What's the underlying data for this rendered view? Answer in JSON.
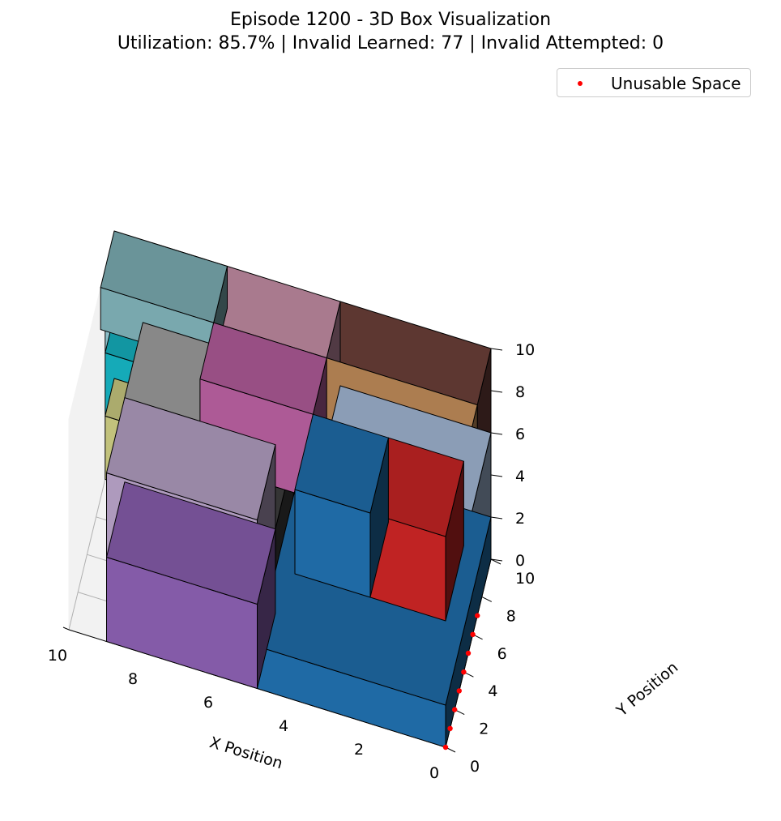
{
  "header": {
    "title": "Episode 1200 - 3D Box Visualization",
    "subtitle": "Utilization: 85.7% | Invalid Learned: 77 | Invalid Attempted: 0"
  },
  "legend": {
    "label": "Unusable Space",
    "marker_color": "#ff0000"
  },
  "chart_data": {
    "type": "3d-bar",
    "xlabel": "X Position",
    "ylabel": "Y Position",
    "zlabel": "",
    "xlim": [
      0,
      10
    ],
    "ylim": [
      0,
      10
    ],
    "zlim": [
      0,
      10
    ],
    "xticks": [
      "0",
      "2",
      "4",
      "6",
      "8",
      "10"
    ],
    "yticks": [
      "0",
      "2",
      "4",
      "6",
      "8",
      "10"
    ],
    "zticks": [
      "0",
      "2",
      "4",
      "6",
      "8",
      "10"
    ],
    "legend_position": "top-right",
    "boxes": [
      {
        "x": 0,
        "y": 0,
        "z": 0,
        "dx": 5,
        "dy": 10,
        "dz": 2,
        "color": "#1f6aa5"
      },
      {
        "x": 0,
        "y": 0,
        "z": 2,
        "dx": 4,
        "dy": 10,
        "dz": 4,
        "color": "#9eb2cf"
      },
      {
        "x": 0,
        "y": 0,
        "z": 6,
        "dx": 2,
        "dy": 4,
        "dz": 4,
        "color": "#c02323"
      },
      {
        "x": 2,
        "y": 0,
        "z": 6,
        "dx": 2,
        "dy": 4,
        "dz": 4,
        "color": "#1f6aa5"
      },
      {
        "x": 0,
        "y": 4,
        "z": 6,
        "dx": 4,
        "dy": 3,
        "dz": 4,
        "color": "#c38e5b"
      },
      {
        "x": 0,
        "y": 7,
        "z": 6,
        "dx": 4,
        "dy": 3,
        "dz": 4,
        "color": "#6a3f38"
      },
      {
        "x": 4,
        "y": 7,
        "z": 6,
        "dx": 3,
        "dy": 3,
        "dz": 4,
        "color": "#c08ba1"
      },
      {
        "x": 4,
        "y": 4,
        "z": 6,
        "dx": 3,
        "dy": 3,
        "dz": 4,
        "color": "#ad5a96"
      },
      {
        "x": 5,
        "y": 0,
        "z": 0,
        "dx": 4,
        "dy": 4,
        "dz": 4,
        "color": "#845ba8"
      },
      {
        "x": 5,
        "y": 0,
        "z": 4,
        "dx": 4,
        "dy": 4,
        "dz": 4,
        "color": "#ae9abd"
      },
      {
        "x": 5,
        "y": 4,
        "z": 0,
        "dx": 4,
        "dy": 4,
        "dz": 4,
        "color": "#3c3c3c"
      },
      {
        "x": 5,
        "y": 4,
        "z": 4,
        "dx": 4,
        "dy": 4,
        "dz": 4,
        "color": "#9b9b9b"
      },
      {
        "x": 7,
        "y": 8,
        "z": 0,
        "dx": 3,
        "dy": 2,
        "dz": 3,
        "color": "#c2c27c"
      },
      {
        "x": 7,
        "y": 8,
        "z": 3,
        "dx": 3,
        "dy": 2,
        "dz": 3,
        "color": "#15aab8"
      },
      {
        "x": 7,
        "y": 8,
        "z": 6,
        "dx": 3,
        "dy": 2,
        "dz": 2,
        "color": "#8cbfc9"
      },
      {
        "x": 7,
        "y": 7,
        "z": 8,
        "dx": 3,
        "dy": 3,
        "dz": 2,
        "color": "#79a8ae"
      },
      {
        "x": 7,
        "y": 9,
        "z": 8,
        "dx": 2,
        "dy": 1,
        "dz": 2,
        "color": "#c4620b"
      }
    ],
    "unusable_space": [
      {
        "x": 9,
        "y": 0,
        "z": 0
      },
      {
        "x": 9,
        "y": 1,
        "z": 0
      },
      {
        "x": 9,
        "y": 2,
        "z": 0
      },
      {
        "x": 9,
        "y": 3,
        "z": 0
      },
      {
        "x": 9,
        "y": 4,
        "z": 0
      },
      {
        "x": 9,
        "y": 5,
        "z": 0
      },
      {
        "x": 9,
        "y": 6,
        "z": 0
      },
      {
        "x": 9,
        "y": 7,
        "z": 0
      }
    ]
  }
}
